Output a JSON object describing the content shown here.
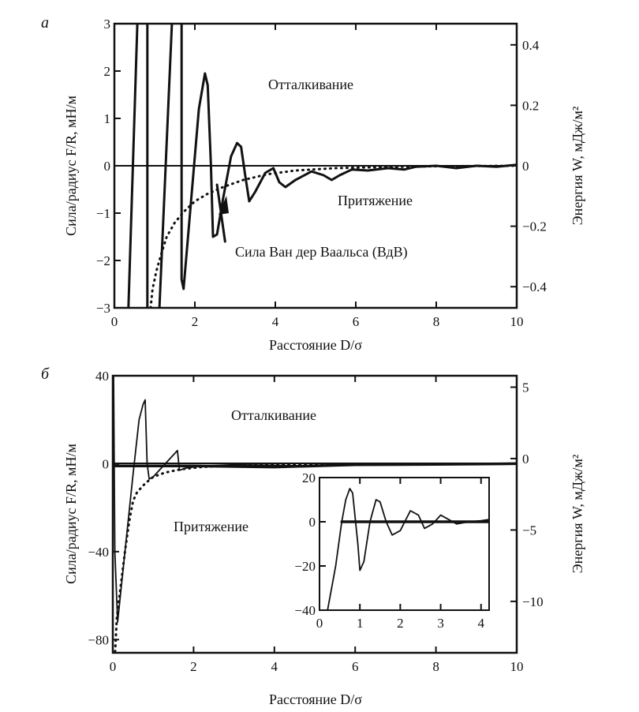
{
  "chart_data": [
    {
      "type": "line",
      "panel_label": "а",
      "xlabel": "Расстояние D/σ",
      "ylabel": "Сила/радиус F/R, мН/м",
      "ylabel_right": "Энергия W, мДж/м²",
      "xlim": [
        0,
        10
      ],
      "ylim": [
        -3,
        3
      ],
      "ylim_right": [
        -0.47,
        0.47
      ],
      "xticks": [
        0,
        2,
        4,
        6,
        8,
        10
      ],
      "yticks": [
        3,
        2,
        1,
        0,
        -1,
        -2,
        -3
      ],
      "yticks_right": [
        0.4,
        0.2,
        0,
        -0.2,
        -0.4
      ],
      "ytick_labels_right": [
        "0.4",
        "0.2",
        "0",
        "−0.2",
        "−0.4"
      ],
      "ytick_labels": [
        "3",
        "2",
        "1",
        "0",
        "−1",
        "−2",
        "−3"
      ],
      "annotations": {
        "repulsion": "Отталкивание",
        "attraction": "Притяжение",
        "vdw": "Сила Ван дер Ваальса (ВдВ)"
      },
      "series": [
        {
          "name": "force-branch-1",
          "style": "solid",
          "x": [
            0.35,
            0.57
          ],
          "y": [
            -3,
            3
          ]
        },
        {
          "name": "force-branch-2",
          "style": "solid",
          "x": [
            0.82,
            0.82
          ],
          "y": [
            3,
            -3
          ]
        },
        {
          "name": "force-branch-3",
          "style": "solid",
          "x": [
            1.12,
            1.43
          ],
          "y": [
            -3,
            3
          ]
        },
        {
          "name": "force-oscillation",
          "style": "solid",
          "x": [
            1.67,
            1.67,
            1.72,
            1.9,
            2.1,
            2.25,
            2.32,
            2.4,
            2.45,
            2.55,
            2.7,
            2.9,
            3.05,
            3.15,
            3.25,
            3.35,
            3.5,
            3.75,
            3.95,
            4.1,
            4.25,
            4.5,
            4.9,
            5.2,
            5.4,
            5.6,
            5.9,
            6.3,
            6.8,
            7.2,
            7.5,
            8,
            8.5,
            9,
            9.5,
            10
          ],
          "y": [
            3,
            -2.4,
            -2.6,
            -0.8,
            1.2,
            1.95,
            1.7,
            0,
            -1.5,
            -1.45,
            -0.7,
            0.2,
            0.48,
            0.4,
            -0.2,
            -0.75,
            -0.55,
            -0.15,
            -0.05,
            -0.35,
            -0.45,
            -0.3,
            -0.12,
            -0.2,
            -0.3,
            -0.2,
            -0.08,
            -0.1,
            -0.05,
            -0.08,
            -0.02,
            0,
            -0.05,
            0,
            -0.02,
            0.02
          ]
        },
        {
          "name": "energy-arrow-segment",
          "style": "solid",
          "x": [
            2.55,
            2.75
          ],
          "y": [
            -0.4,
            -1.6
          ]
        },
        {
          "name": "vdw-force",
          "style": "dotted",
          "x": [
            0.9,
            0.95,
            1.05,
            1.15,
            1.3,
            1.5,
            1.75,
            2.0,
            2.3,
            2.7,
            3.2,
            3.8,
            4.5,
            5.5,
            6.5,
            8,
            10
          ],
          "y": [
            -3,
            -2.6,
            -2.2,
            -1.9,
            -1.5,
            -1.2,
            -0.95,
            -0.75,
            -0.6,
            -0.45,
            -0.3,
            -0.18,
            -0.1,
            -0.05,
            -0.03,
            -0.01,
            0
          ]
        }
      ]
    },
    {
      "type": "line",
      "panel_label": "б",
      "xlabel": "Расстояние D/σ",
      "ylabel": "Сила/радиус F/R, мН/м",
      "ylabel_right": "Энергия W, мДж/м²",
      "xlim": [
        0,
        10
      ],
      "ylim": [
        -86,
        40
      ],
      "ylim_right": [
        -13.6,
        5.8
      ],
      "xticks": [
        0,
        2,
        4,
        6,
        8,
        10
      ],
      "yticks": [
        40,
        0,
        -40,
        -80
      ],
      "ytick_labels": [
        "40",
        "0",
        "−40",
        "−80"
      ],
      "yticks_right": [
        5,
        0,
        -5,
        -10
      ],
      "ytick_labels_right": [
        "5",
        "0",
        "−5",
        "−10"
      ],
      "annotations": {
        "repulsion": "Отталкивание",
        "attraction": "Притяжение"
      },
      "series": [
        {
          "name": "force",
          "style": "solid",
          "x": [
            0.02,
            0.05,
            0.12,
            0.3,
            0.5,
            0.65,
            0.75,
            0.8,
            0.85,
            0.9,
            1.0,
            1.3,
            1.55,
            1.6,
            1.65,
            1.8,
            2.2,
            3,
            5,
            7,
            10
          ],
          "y": [
            40,
            -40,
            -72,
            -40,
            -5,
            20,
            27,
            29,
            0,
            -7,
            -6,
            0,
            5,
            6,
            -3,
            -2,
            -1,
            -0.5,
            -1,
            -0.3,
            0
          ]
        },
        {
          "name": "energy",
          "style": "thick",
          "x": [
            0,
            1,
            2,
            4,
            6,
            8,
            10
          ],
          "y": [
            -1,
            -1,
            -1,
            -1.5,
            -0.5,
            -0.3,
            0
          ]
        },
        {
          "name": "vdw-force",
          "style": "dotted",
          "x": [
            0.05,
            0.1,
            0.2,
            0.3,
            0.4,
            0.5,
            0.6,
            0.8,
            1.0,
            1.3,
            1.7,
            2.2,
            3,
            4,
            6,
            10
          ],
          "y": [
            -88,
            -70,
            -55,
            -40,
            -27,
            -17,
            -13,
            -9,
            -6,
            -4,
            -2.5,
            -1.5,
            -0.8,
            -0.4,
            -0.2,
            0
          ]
        }
      ],
      "inset": {
        "xlim": [
          0,
          4.2
        ],
        "ylim": [
          -40,
          20
        ],
        "xticks": [
          0,
          1,
          2,
          3,
          4
        ],
        "yticks": [
          20,
          0,
          -20,
          -40
        ],
        "ytick_labels": [
          "20",
          "0",
          "−20",
          "−40"
        ],
        "series": [
          {
            "name": "inset-force",
            "style": "solid",
            "x": [
              0.2,
              0.4,
              0.55,
              0.65,
              0.75,
              0.82,
              0.95,
              1.0,
              1.1,
              1.25,
              1.4,
              1.5,
              1.65,
              1.8,
              2.0,
              2.25,
              2.45,
              2.6,
              2.8,
              3.0,
              3.2,
              3.4,
              3.7,
              4.0,
              4.2
            ],
            "y": [
              -40,
              -20,
              0,
              10,
              15,
              13,
              -10,
              -22,
              -18,
              0,
              10,
              9,
              0,
              -6,
              -4,
              5,
              3,
              -3,
              -1,
              3,
              1,
              -1,
              0,
              0.5,
              1
            ]
          },
          {
            "name": "inset-zero",
            "style": "thick",
            "x": [
              0.55,
              4.2
            ],
            "y": [
              0,
              0
            ]
          }
        ]
      }
    }
  ]
}
